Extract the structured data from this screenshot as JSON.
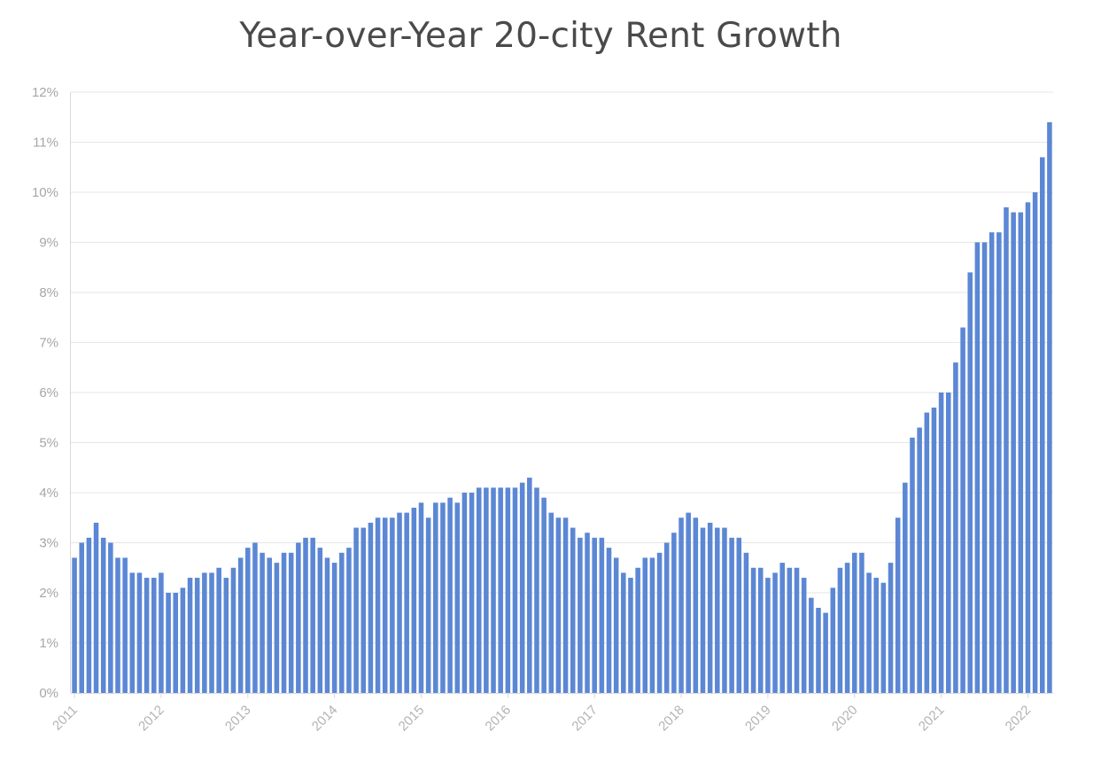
{
  "chart_data": {
    "type": "bar",
    "title": "Year-over-Year 20-city Rent Growth",
    "xlabel": "",
    "ylabel": "",
    "ylim": [
      0,
      12
    ],
    "y_tick_labels": [
      "0%",
      "1%",
      "2%",
      "3%",
      "4%",
      "5%",
      "6%",
      "7%",
      "8%",
      "9%",
      "10%",
      "11%",
      "12%"
    ],
    "x_tick_labels": [
      "2011",
      "2012",
      "2013",
      "2014",
      "2015",
      "2016",
      "2017",
      "2018",
      "2019",
      "2020",
      "2021",
      "2022"
    ],
    "frequency": "monthly",
    "first_period": "2011-01",
    "last_period": "2022-04",
    "bar_color": "#5b87d4",
    "grid": true,
    "legend": "none",
    "series": [
      {
        "values": [
          2.7,
          3.0,
          3.1,
          3.4,
          3.1,
          3.0,
          2.7,
          2.7,
          2.4,
          2.4,
          2.3,
          2.3,
          2.4,
          2.0,
          2.0,
          2.1,
          2.3,
          2.3,
          2.4,
          2.4,
          2.5,
          2.3,
          2.5,
          2.7,
          2.9,
          3.0,
          2.8,
          2.7,
          2.6,
          2.8,
          2.8,
          3.0,
          3.1,
          3.1,
          2.9,
          2.7,
          2.6,
          2.8,
          2.9,
          3.3,
          3.3,
          3.4,
          3.5,
          3.5,
          3.5,
          3.6,
          3.6,
          3.7,
          3.8,
          3.5,
          3.8,
          3.8,
          3.9,
          3.8,
          4.0,
          4.0,
          4.1,
          4.1,
          4.1,
          4.1,
          4.1,
          4.1,
          4.2,
          4.3,
          4.1,
          3.9,
          3.6,
          3.5,
          3.5,
          3.3,
          3.1,
          3.2,
          3.1,
          3.1,
          2.9,
          2.7,
          2.4,
          2.3,
          2.5,
          2.7,
          2.7,
          2.8,
          3.0,
          3.2,
          3.5,
          3.6,
          3.5,
          3.3,
          3.4,
          3.3,
          3.3,
          3.1,
          3.1,
          2.8,
          2.5,
          2.5,
          2.3,
          2.4,
          2.6,
          2.5,
          2.5,
          2.3,
          1.9,
          1.7,
          1.6,
          2.1,
          2.5,
          2.6,
          2.8,
          2.8,
          2.4,
          2.3,
          2.2,
          2.6,
          3.5,
          4.2,
          5.1,
          5.3,
          5.6,
          5.7,
          6.0,
          6.0,
          6.6,
          7.3,
          8.4,
          9.0,
          9.0,
          9.2,
          9.2,
          9.7,
          9.6,
          9.6,
          9.8,
          10.0,
          10.7,
          11.4
        ]
      }
    ]
  }
}
